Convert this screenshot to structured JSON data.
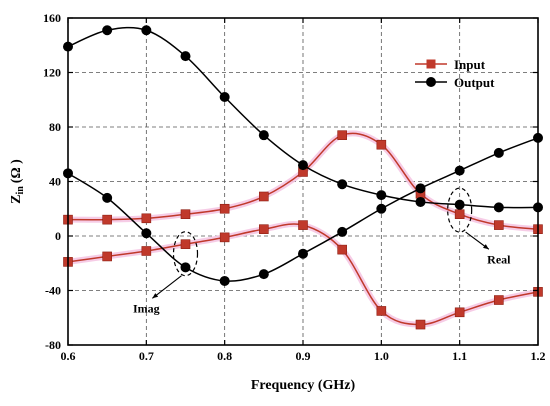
{
  "chart_data": {
    "type": "line",
    "xlabel": "Frequency (GHz)",
    "ylabel": {
      "main": "Z",
      "sub": "in",
      "unit": "(Ω )"
    },
    "xlim": [
      0.6,
      1.2
    ],
    "ylim": [
      -80,
      160
    ],
    "xticks": [
      0.6,
      0.7,
      0.8,
      0.9,
      1.0,
      1.1,
      1.2
    ],
    "xtick_labels": [
      "0.6",
      "0.7",
      "0.8",
      "0.9",
      "1.0",
      "1.1",
      "1.2"
    ],
    "yticks": [
      -80,
      -40,
      0,
      40,
      80,
      120,
      160
    ],
    "ytick_labels": [
      "-80",
      "-40",
      "0",
      "40",
      "80",
      "120",
      "160"
    ],
    "grid": true,
    "legend_position": "top-right",
    "legend": [
      "Input",
      "Output"
    ],
    "x": [
      0.6,
      0.65,
      0.7,
      0.75,
      0.8,
      0.85,
      0.9,
      0.95,
      1.0,
      1.05,
      1.1,
      1.15,
      1.2
    ],
    "series": [
      {
        "legend_index": 0,
        "part": "real",
        "marker": "square",
        "color": "#c0392b",
        "values": [
          12,
          12,
          13,
          16,
          20,
          29,
          47,
          74,
          67,
          31,
          16,
          8,
          5
        ]
      },
      {
        "legend_index": 0,
        "part": "imag",
        "marker": "square",
        "color": "#c0392b",
        "values": [
          -19,
          -15,
          -11,
          -6,
          -1,
          5,
          8,
          -10,
          -55,
          -65,
          -56,
          -47,
          -41
        ]
      },
      {
        "legend_index": 1,
        "part": "real",
        "marker": "circle",
        "color": "#000000",
        "values": [
          139,
          151,
          151,
          132,
          102,
          74,
          52,
          38,
          30,
          25,
          23,
          21,
          21
        ]
      },
      {
        "legend_index": 1,
        "part": "imag",
        "marker": "circle",
        "color": "#000000",
        "values": [
          46,
          28,
          2,
          -23,
          -33,
          -28,
          -13,
          3,
          20,
          35,
          48,
          61,
          72
        ]
      }
    ],
    "annotations": [
      {
        "text": "Real",
        "ellipse_center": [
          1.1,
          19
        ],
        "label_at": [
          1.15,
          -20
        ]
      },
      {
        "text": "Imag",
        "ellipse_center": [
          0.75,
          -13
        ],
        "label_at": [
          0.7,
          -56
        ]
      }
    ]
  }
}
